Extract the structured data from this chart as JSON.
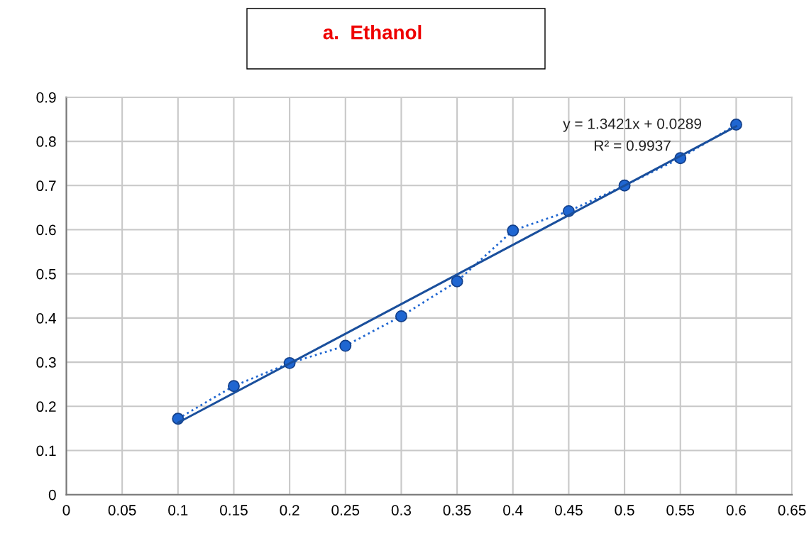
{
  "chart_data": {
    "type": "line",
    "title": "a.  Ethanol",
    "x": [
      0.1,
      0.15,
      0.2,
      0.25,
      0.3,
      0.35,
      0.4,
      0.45,
      0.5,
      0.55,
      0.6
    ],
    "series": [
      {
        "color": "#1f66d1",
        "marker": "circle",
        "line_style": "dotted",
        "values": [
          0.172,
          0.246,
          0.298,
          0.337,
          0.404,
          0.483,
          0.598,
          0.642,
          0.7,
          0.762,
          0.838
        ]
      },
      {
        "type": "line",
        "color": "#1a4f9c",
        "marker": "none",
        "line_style": "solid",
        "x": [
          0.1,
          0.6
        ],
        "values": [
          0.163,
          0.834
        ]
      }
    ],
    "annotations": [
      "y = 1.3421x + 0.0289",
      "R² = 0.9937"
    ],
    "xlim": [
      0,
      0.65
    ],
    "xticks": [
      0,
      0.05,
      0.1,
      0.15,
      0.2,
      0.25,
      0.3,
      0.35,
      0.4,
      0.45,
      0.5,
      0.55,
      0.6,
      0.65
    ],
    "ylim": [
      0,
      0.9
    ],
    "yticks": [
      0,
      0.1,
      0.2,
      0.3,
      0.4,
      0.5,
      0.6,
      0.7,
      0.8,
      0.9
    ],
    "grid": true
  }
}
